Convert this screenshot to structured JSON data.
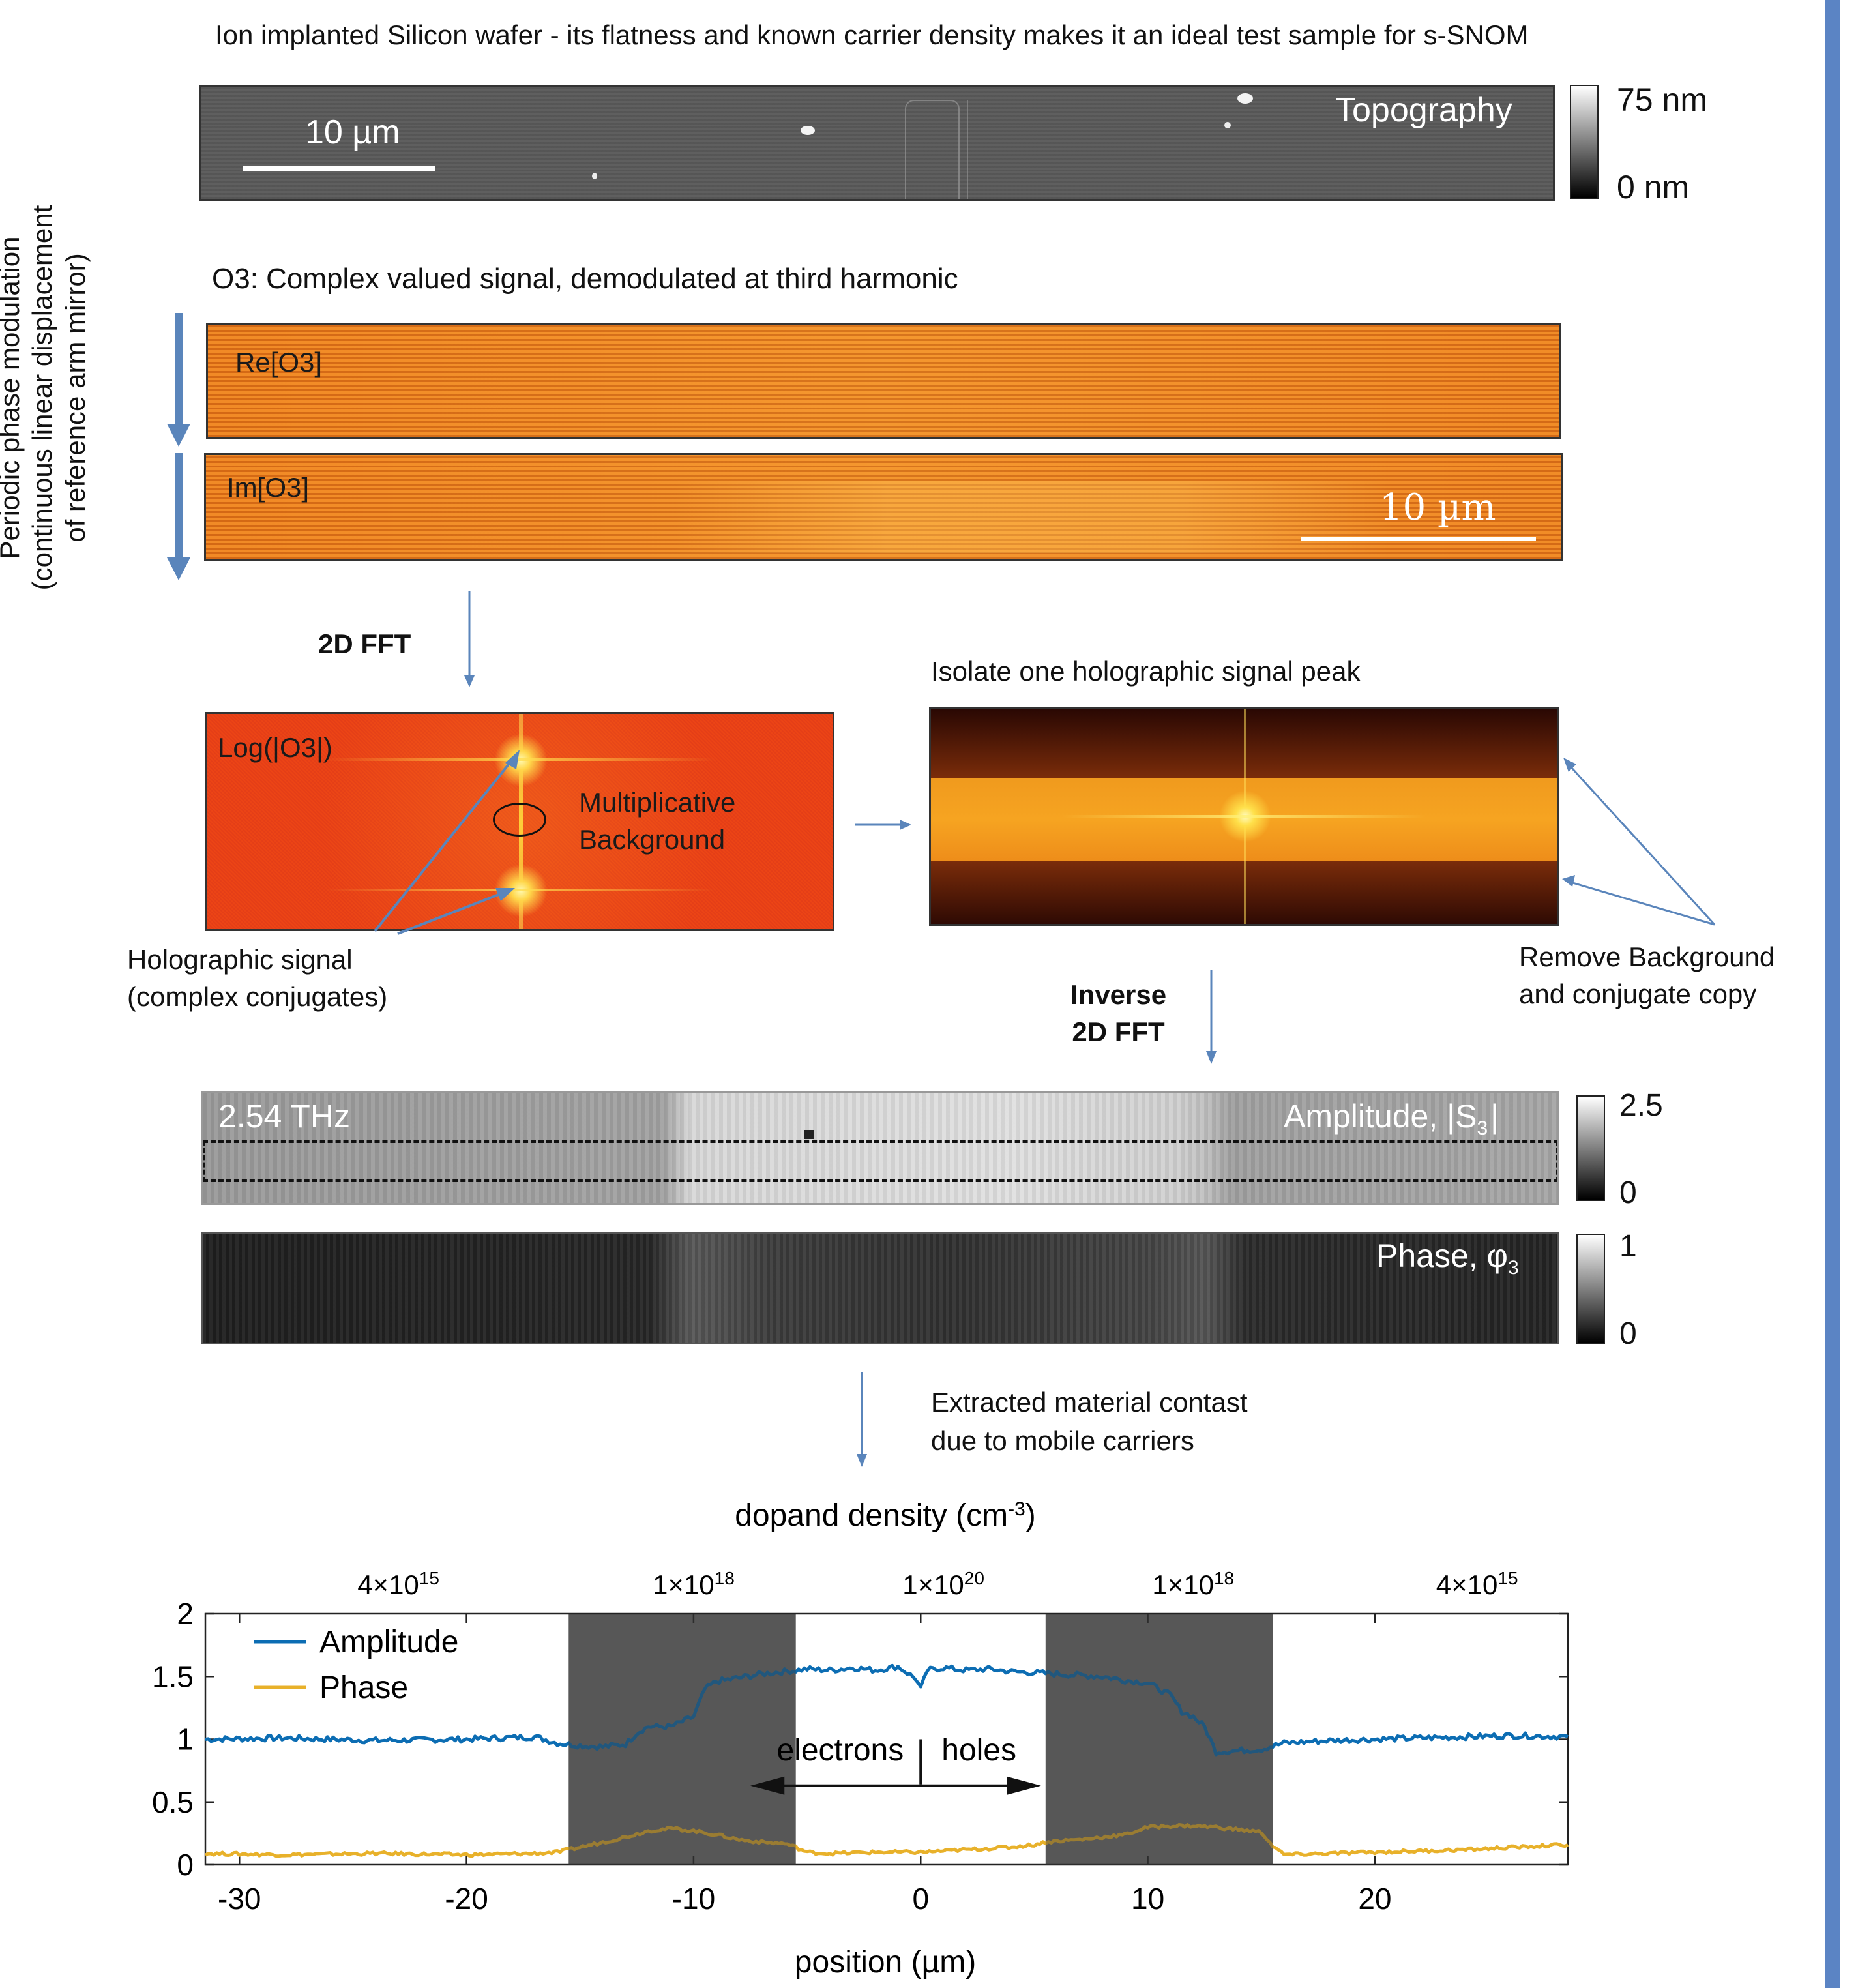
{
  "header": {
    "title": "Ion implanted Silicon wafer - its flatness and known carrier density makes it an ideal test sample for s-SNOM"
  },
  "topography": {
    "label": "Topography",
    "scalebar": "10 µm",
    "cbar_max": "75 nm",
    "cbar_min": "0 nm"
  },
  "o3": {
    "caption": "O3: Complex valued signal, demodulated at third harmonic",
    "re_label": "Re[O3]",
    "im_label": "Im[O3]",
    "scalebar": "10 µm"
  },
  "side": {
    "line1": "Periodic phase modulation",
    "line2": "(continuous linear displacement",
    "line3": "of reference arm mirror)"
  },
  "fft": {
    "step_label": "2D FFT",
    "log_label": "Log(|O3|)",
    "mult_line1": "Multiplicative",
    "mult_line2": "Background",
    "holo_line1": "Holographic signal",
    "holo_line2": "(complex conjugates)",
    "isolate_label": "Isolate one holographic signal peak",
    "remove_line1": "Remove Background",
    "remove_line2": "and conjugate copy",
    "inverse_line1": "Inverse",
    "inverse_line2": "2D FFT"
  },
  "result": {
    "freq": "2.54 THz",
    "amp_label": "Amplitude, |S",
    "amp_sub": "3",
    "amp_cbar_max": "2.5",
    "amp_cbar_min": "0",
    "phase_label": "Phase, φ",
    "phase_sub": "3",
    "phase_cbar_max": "1",
    "phase_cbar_min": "0",
    "extract_line1": "Extracted material contast",
    "extract_line2": "due to mobile carriers"
  },
  "chart_data": {
    "type": "line",
    "top_axis_title": "dopand density (cm",
    "top_axis_title_sup": "-3",
    "top_axis_title_end": ")",
    "top_ticks": [
      {
        "base": "4×10",
        "exp": "15",
        "x": -23
      },
      {
        "base": "1×10",
        "exp": "18",
        "x": -10
      },
      {
        "base": "1×10",
        "exp": "20",
        "x": 1
      },
      {
        "base": "1×10",
        "exp": "18",
        "x": 12
      },
      {
        "base": "4×10",
        "exp": "15",
        "x": 24.5
      }
    ],
    "xlabel": "position (µm)",
    "xlim": [
      -31.5,
      28.5
    ],
    "ylim": [
      0,
      2
    ],
    "xticks": [
      -30,
      -20,
      -10,
      0,
      10,
      20
    ],
    "yticks": [
      0,
      0.5,
      1,
      1.5,
      2
    ],
    "ytick_labels": [
      "0",
      "0.5",
      "1",
      "1.5",
      "2"
    ],
    "shaded_regions": [
      [
        -15.5,
        -5.5
      ],
      [
        5.5,
        15.5
      ]
    ],
    "legend_position": "top-left",
    "annotation_left": "electrons",
    "annotation_right": "holes",
    "series": [
      {
        "name": "Amplitude",
        "color": "#0c6db3",
        "x": [
          -31.5,
          -28,
          -24,
          -20,
          -17,
          -16,
          -15,
          -14,
          -13,
          -12.5,
          -12,
          -11,
          -10,
          -9.5,
          -9,
          -8,
          -7,
          -6,
          -5,
          -4,
          -3,
          -2,
          -1,
          -0.2,
          0,
          0.3,
          1,
          2,
          3,
          4,
          5,
          6,
          7,
          8,
          9,
          10,
          10.5,
          11,
          11.5,
          12,
          12.5,
          13,
          14,
          15,
          16,
          18,
          20,
          22,
          24,
          26,
          28.5
        ],
        "y": [
          1.0,
          1.01,
          0.99,
          1.0,
          1.02,
          0.97,
          0.95,
          0.94,
          0.96,
          1.05,
          1.1,
          1.1,
          1.18,
          1.4,
          1.46,
          1.49,
          1.52,
          1.54,
          1.56,
          1.55,
          1.57,
          1.55,
          1.58,
          1.48,
          1.4,
          1.55,
          1.57,
          1.55,
          1.56,
          1.54,
          1.53,
          1.52,
          1.51,
          1.5,
          1.47,
          1.45,
          1.4,
          1.35,
          1.22,
          1.18,
          1.1,
          0.9,
          0.91,
          0.92,
          0.97,
          0.99,
          1.0,
          1.01,
          1.02,
          1.03,
          1.02
        ]
      },
      {
        "name": "Phase",
        "color": "#e8b12a",
        "x": [
          -31.5,
          -28,
          -24,
          -20,
          -17,
          -16,
          -15.5,
          -14,
          -13,
          -12,
          -11,
          -10,
          -9,
          -8,
          -7,
          -6,
          -5.5,
          -5,
          -4,
          -2,
          0,
          2,
          4,
          5,
          5.5,
          6,
          7,
          8,
          9,
          10,
          11,
          12,
          13,
          14,
          15,
          15.5,
          16,
          18,
          20,
          24,
          28.5
        ],
        "y": [
          0.09,
          0.08,
          0.09,
          0.08,
          0.09,
          0.1,
          0.12,
          0.18,
          0.22,
          0.27,
          0.29,
          0.27,
          0.24,
          0.2,
          0.18,
          0.17,
          0.14,
          0.1,
          0.09,
          0.1,
          0.1,
          0.12,
          0.14,
          0.16,
          0.18,
          0.19,
          0.2,
          0.22,
          0.24,
          0.3,
          0.31,
          0.31,
          0.3,
          0.28,
          0.26,
          0.15,
          0.08,
          0.09,
          0.1,
          0.12,
          0.16
        ]
      }
    ]
  },
  "colors": {
    "accent_bar": "#5b84c4",
    "arrow": "#5a85bb"
  }
}
